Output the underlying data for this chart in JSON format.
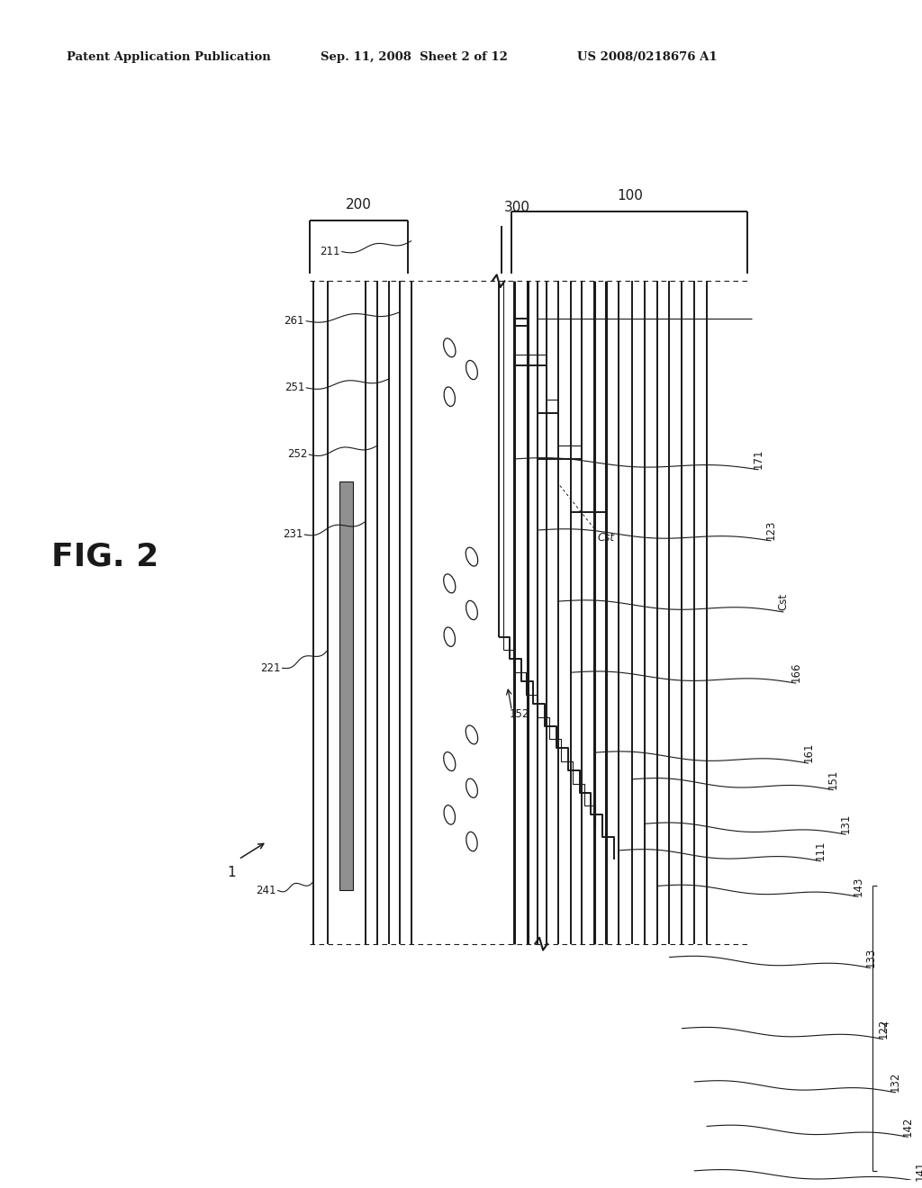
{
  "bg_color": "#ffffff",
  "lc": "#1a1a1a",
  "gray_fill": "#909090",
  "header_left": "Patent Application Publication",
  "header_mid": "Sep. 11, 2008  Sheet 2 of 12",
  "header_right": "US 2008/0218676 A1",
  "fig_label": "FIG. 2"
}
